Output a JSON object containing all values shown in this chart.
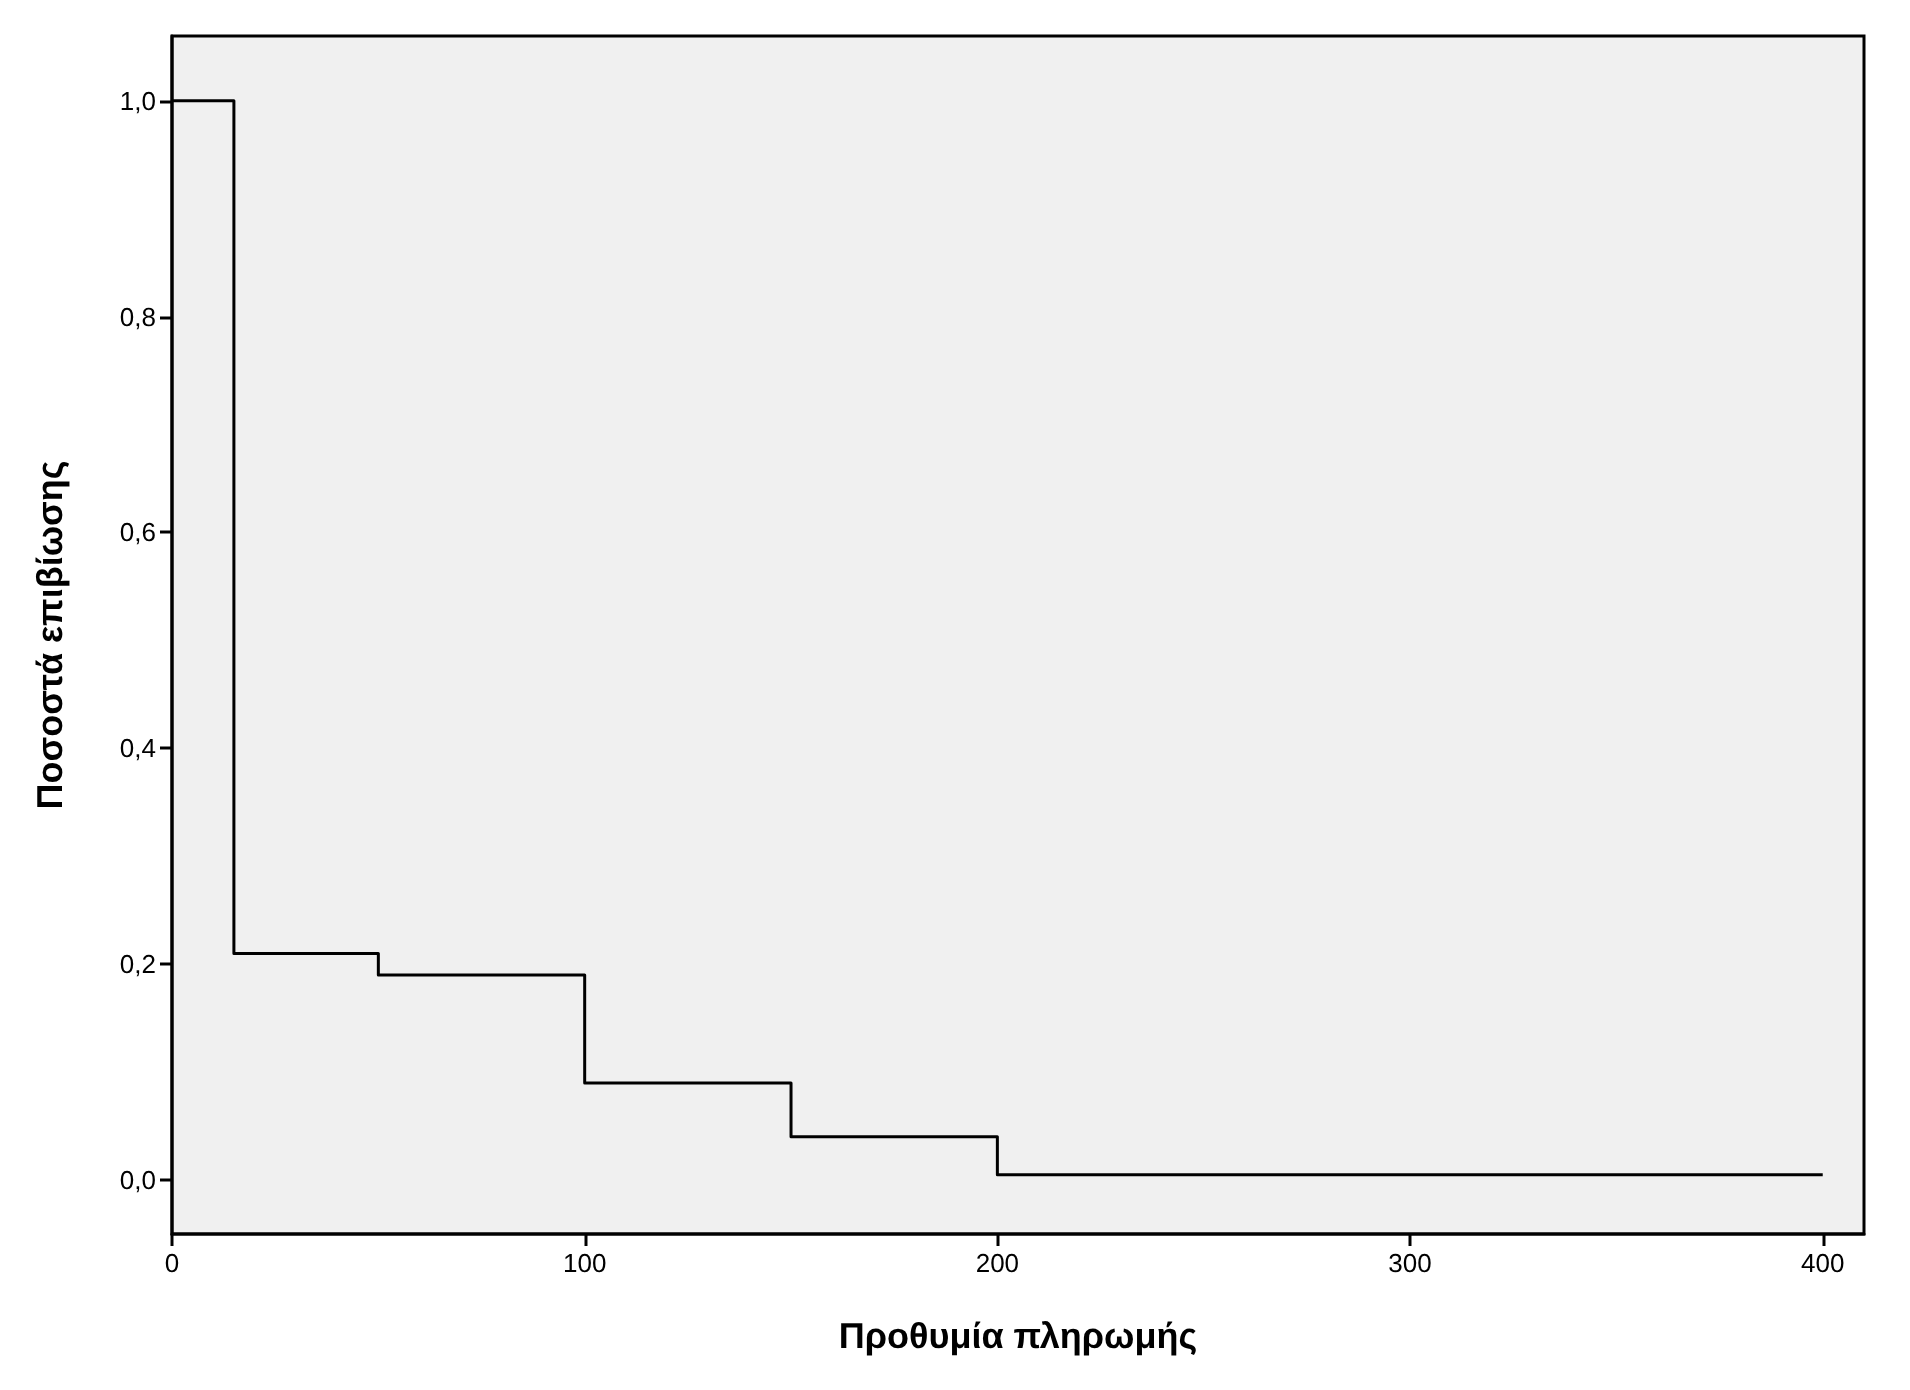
{
  "chart_data": {
    "type": "step",
    "xlabel": "Προθυμία πληρωμής",
    "ylabel": "Ποσοστά επιβίωσης",
    "x": [
      0,
      15,
      50,
      100,
      150,
      200,
      400
    ],
    "series": [
      {
        "color": "#000000",
        "values": [
          1.0,
          0.21,
          0.19,
          0.09,
          0.04,
          0.005,
          0.005
        ]
      }
    ],
    "xlim": [
      0,
      410
    ],
    "xticks": [
      0,
      100,
      200,
      300,
      400
    ],
    "ylim": [
      -0.05,
      1.06
    ],
    "yticks": [
      {
        "value": 0,
        "label": "0,0"
      },
      {
        "value": 0.2,
        "label": "0,2"
      },
      {
        "value": 0.4,
        "label": "0,4"
      },
      {
        "value": 0.6,
        "label": "0,6"
      },
      {
        "value": 0.8,
        "label": "0,8"
      },
      {
        "value": 1.0,
        "label": "1,0"
      }
    ],
    "marker": "none",
    "line_style": "solid"
  }
}
